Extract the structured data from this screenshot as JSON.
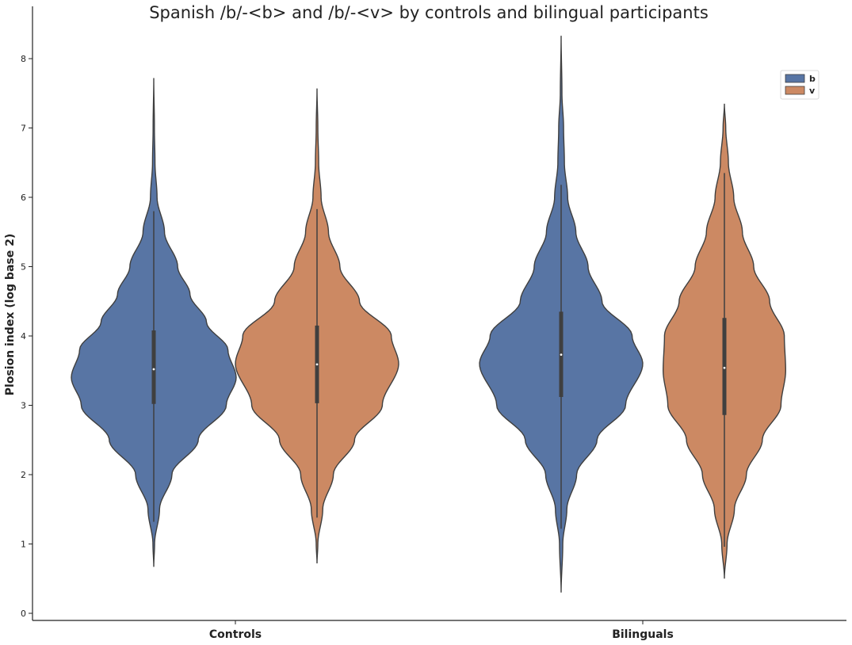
{
  "chart_data": {
    "type": "violin",
    "title": "Spanish /b/-<b> and /b/-<v> by controls and bilingual participants",
    "xlabel": "",
    "ylabel": "Plosion index (log base 2)",
    "categories": [
      "Controls",
      "Bilinguals"
    ],
    "ylim": [
      -0.1,
      8.6
    ],
    "yticks": [
      0,
      1,
      2,
      3,
      4,
      5,
      6,
      7,
      8
    ],
    "grid": false,
    "legend": {
      "placement": "top-right",
      "entries": [
        "b",
        "v"
      ]
    },
    "colors": {
      "b": "#5875a4",
      "v": "#cc8963",
      "outline": "#3f3f3f",
      "box": "#3f3f3f",
      "median": "#ffffff"
    },
    "series": [
      {
        "name": "b",
        "violins": [
          {
            "category": "Controls",
            "min": 0.67,
            "max": 7.72,
            "q1": 3.02,
            "median": 3.52,
            "q3": 4.08,
            "whisker_low": 1.32,
            "whisker_high": 5.8,
            "profile": [
              [
                0.67,
                0.0
              ],
              [
                1.0,
                0.01
              ],
              [
                1.5,
                0.07
              ],
              [
                2.0,
                0.22
              ],
              [
                2.5,
                0.54
              ],
              [
                3.0,
                0.88
              ],
              [
                3.4,
                1.0
              ],
              [
                3.8,
                0.9
              ],
              [
                4.2,
                0.64
              ],
              [
                4.6,
                0.44
              ],
              [
                5.0,
                0.29
              ],
              [
                5.5,
                0.13
              ],
              [
                6.0,
                0.04
              ],
              [
                6.5,
                0.015
              ],
              [
                7.0,
                0.008
              ],
              [
                7.72,
                0.0
              ]
            ]
          },
          {
            "category": "Bilinguals",
            "min": 0.3,
            "max": 8.33,
            "q1": 3.12,
            "median": 3.73,
            "q3": 4.35,
            "whisker_low": 1.22,
            "whisker_high": 6.18,
            "profile": [
              [
                0.3,
                0.0
              ],
              [
                1.0,
                0.02
              ],
              [
                1.5,
                0.07
              ],
              [
                2.0,
                0.19
              ],
              [
                2.5,
                0.44
              ],
              [
                3.0,
                0.79
              ],
              [
                3.6,
                1.0
              ],
              [
                4.0,
                0.87
              ],
              [
                4.5,
                0.5
              ],
              [
                5.0,
                0.33
              ],
              [
                5.5,
                0.18
              ],
              [
                6.0,
                0.08
              ],
              [
                6.5,
                0.04
              ],
              [
                7.0,
                0.03
              ],
              [
                7.5,
                0.01
              ],
              [
                8.33,
                0.0
              ]
            ]
          }
        ]
      },
      {
        "name": "v",
        "violins": [
          {
            "category": "Controls",
            "min": 0.72,
            "max": 7.57,
            "q1": 3.03,
            "median": 3.59,
            "q3": 4.15,
            "whisker_low": 1.38,
            "whisker_high": 5.83,
            "profile": [
              [
                0.72,
                0.0
              ],
              [
                1.0,
                0.01
              ],
              [
                1.5,
                0.07
              ],
              [
                2.0,
                0.2
              ],
              [
                2.5,
                0.46
              ],
              [
                3.0,
                0.8
              ],
              [
                3.6,
                1.0
              ],
              [
                4.0,
                0.91
              ],
              [
                4.5,
                0.52
              ],
              [
                5.0,
                0.28
              ],
              [
                5.5,
                0.14
              ],
              [
                6.0,
                0.05
              ],
              [
                6.5,
                0.02
              ],
              [
                7.0,
                0.01
              ],
              [
                7.57,
                0.0
              ]
            ]
          },
          {
            "category": "Bilinguals",
            "min": 0.5,
            "max": 7.35,
            "q1": 2.86,
            "median": 3.54,
            "q3": 4.26,
            "whisker_low": 0.96,
            "whisker_high": 6.35,
            "profile": [
              [
                0.5,
                0.0
              ],
              [
                1.0,
                0.04
              ],
              [
                1.5,
                0.15
              ],
              [
                2.0,
                0.33
              ],
              [
                2.5,
                0.57
              ],
              [
                3.0,
                0.85
              ],
              [
                3.5,
                0.92
              ],
              [
                4.0,
                0.9
              ],
              [
                4.5,
                0.68
              ],
              [
                5.0,
                0.44
              ],
              [
                5.5,
                0.27
              ],
              [
                6.0,
                0.14
              ],
              [
                6.5,
                0.06
              ],
              [
                7.0,
                0.02
              ],
              [
                7.35,
                0.0
              ]
            ]
          }
        ]
      }
    ]
  }
}
